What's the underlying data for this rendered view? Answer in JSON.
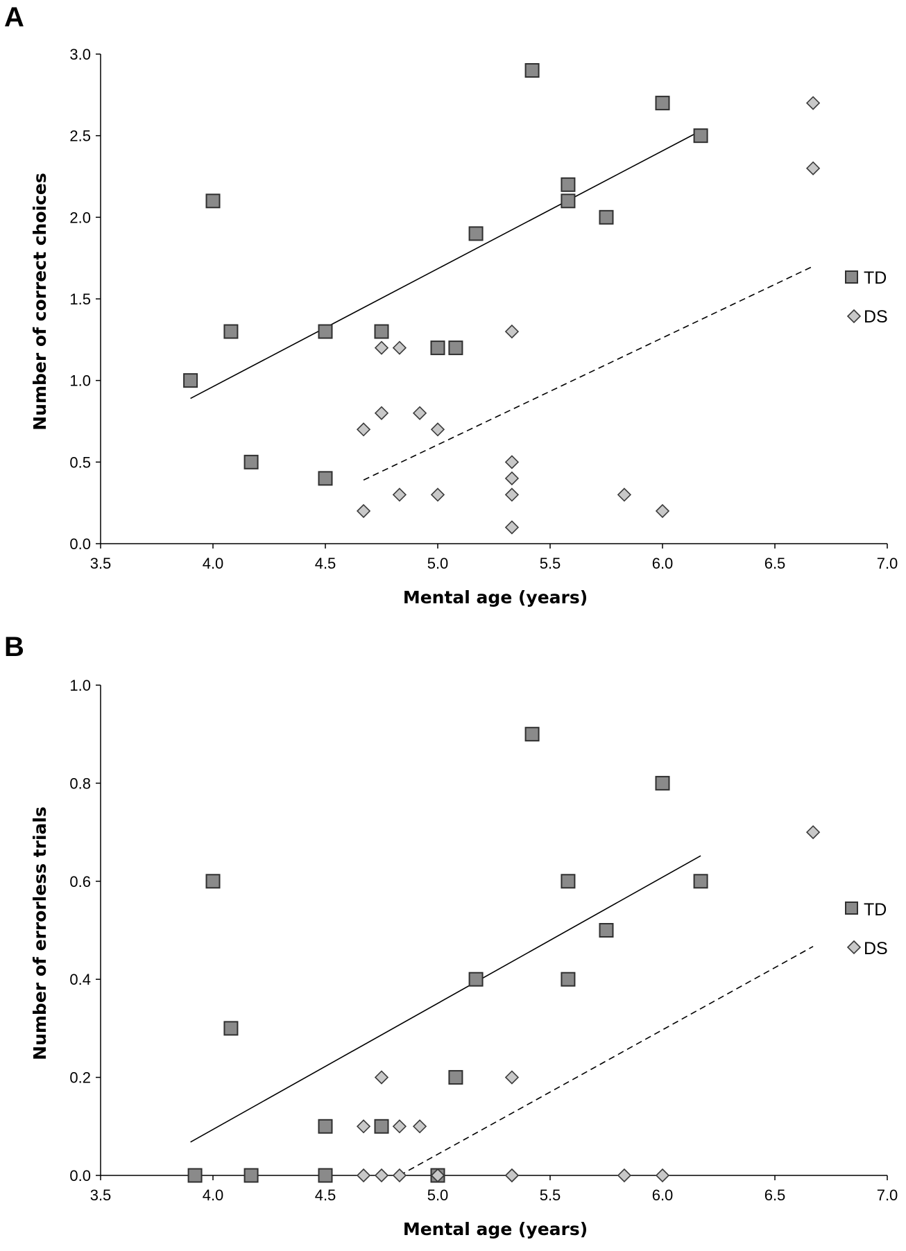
{
  "colors": {
    "td_fill": "#8a8a8a",
    "td_stroke": "#2f2f2f",
    "ds_fill": "#c8c8c8",
    "ds_stroke": "#3a3a3a",
    "axis": "#000000"
  },
  "chart_data": [
    {
      "panel": "A",
      "type": "scatter",
      "title": "",
      "xlabel": "Mental age (years)",
      "ylabel": "Number of correct choices",
      "xlim": [
        3.5,
        7.0
      ],
      "ylim": [
        0.0,
        3.0
      ],
      "xticks": [
        "3.5",
        "4.0",
        "4.5",
        "5.0",
        "5.5",
        "6.0",
        "6.5",
        "7.0"
      ],
      "yticks": [
        "0.0",
        "0.5",
        "1.0",
        "1.5",
        "2.0",
        "2.5",
        "3.0"
      ],
      "grid": false,
      "legend": "right",
      "series": [
        {
          "name": "TD",
          "marker": "square",
          "x": [
            3.9,
            4.0,
            4.08,
            4.17,
            4.5,
            4.5,
            4.75,
            5.0,
            5.08,
            5.17,
            5.42,
            5.58,
            5.58,
            5.75,
            6.0,
            6.17
          ],
          "y": [
            1.0,
            2.1,
            1.3,
            0.5,
            1.3,
            0.4,
            1.3,
            1.2,
            1.2,
            1.9,
            2.9,
            2.2,
            2.1,
            2.0,
            2.7,
            2.5
          ],
          "trendline": {
            "style": "solid",
            "x": [
              3.9,
              6.17
            ],
            "y": [
              0.89,
              2.53
            ]
          }
        },
        {
          "name": "DS",
          "marker": "diamond",
          "x": [
            4.67,
            4.67,
            4.75,
            4.75,
            4.83,
            4.83,
            4.92,
            5.0,
            5.0,
            5.33,
            5.33,
            5.33,
            5.33,
            5.33,
            5.83,
            6.0,
            6.67,
            6.67
          ],
          "y": [
            0.7,
            0.2,
            1.2,
            0.8,
            1.2,
            0.3,
            0.8,
            0.7,
            0.3,
            1.3,
            0.5,
            0.4,
            0.3,
            0.1,
            0.3,
            0.2,
            2.7,
            2.3
          ],
          "trendline": {
            "style": "dashed",
            "x": [
              4.67,
              6.67
            ],
            "y": [
              0.39,
              1.7
            ]
          }
        }
      ]
    },
    {
      "panel": "B",
      "type": "scatter",
      "title": "",
      "xlabel": "Mental age (years)",
      "ylabel": "Number of errorless trials",
      "xlim": [
        3.5,
        7.0
      ],
      "ylim": [
        0.0,
        1.0
      ],
      "xticks": [
        "3.5",
        "4.0",
        "4.5",
        "5.0",
        "5.5",
        "6.0",
        "6.5",
        "7.0"
      ],
      "yticks": [
        "0.0",
        "0.2",
        "0.4",
        "0.6",
        "0.8",
        "1.0"
      ],
      "grid": false,
      "legend": "right",
      "series": [
        {
          "name": "TD",
          "marker": "square",
          "x": [
            3.92,
            4.0,
            4.08,
            4.17,
            4.5,
            4.5,
            4.75,
            5.0,
            5.08,
            5.17,
            5.42,
            5.58,
            5.58,
            5.75,
            6.0,
            6.17
          ],
          "y": [
            0.0,
            0.6,
            0.3,
            0.0,
            0.1,
            0.0,
            0.1,
            0.0,
            0.2,
            0.4,
            0.9,
            0.6,
            0.4,
            0.5,
            0.8,
            0.6
          ],
          "trendline": {
            "style": "solid",
            "x": [
              3.9,
              6.17
            ],
            "y": [
              0.068,
              0.652
            ]
          }
        },
        {
          "name": "DS",
          "marker": "diamond",
          "x": [
            4.67,
            4.67,
            4.75,
            4.75,
            4.83,
            4.83,
            4.92,
            5.0,
            5.0,
            5.33,
            5.33,
            5.33,
            5.83,
            6.0,
            6.67
          ],
          "y": [
            0.1,
            0.0,
            0.2,
            0.0,
            0.1,
            0.0,
            0.1,
            0.0,
            0.0,
            0.2,
            0.0,
            0.0,
            0.0,
            0.0,
            0.7
          ],
          "trendline": {
            "style": "dashed",
            "x": [
              4.83,
              6.67
            ],
            "y": [
              0.0,
              0.467
            ]
          }
        }
      ]
    }
  ]
}
